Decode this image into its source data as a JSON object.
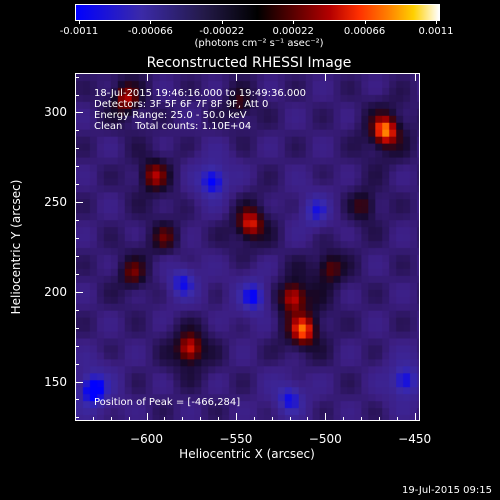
{
  "colorbar": {
    "tick_labels": [
      "-0.0011",
      "-0.00066",
      "-0.00022",
      "0.00022",
      "0.00066",
      "0.0011"
    ],
    "unit_label": "(photons cm⁻² s⁻¹ asec⁻²)",
    "range": [
      -0.0011,
      0.0011
    ]
  },
  "chart_data": {
    "type": "heatmap",
    "title": "Reconstructed RHESSI Image",
    "xlabel": "Heliocentric X (arcsec)",
    "ylabel": "Heliocentric Y (arcsec)",
    "xlim": [
      -640,
      -447
    ],
    "ylim": [
      128,
      322
    ],
    "x_ticks": [
      -600,
      -550,
      -500,
      -450
    ],
    "y_ticks": [
      150,
      200,
      250,
      300
    ],
    "x_tick_labels": [
      "−600",
      "−550",
      "−500",
      "−450"
    ],
    "y_tick_labels": [
      "150",
      "200",
      "250",
      "300"
    ],
    "peak": [
      -466,
      284
    ],
    "bright_sources": [
      {
        "x": -466,
        "y": 290,
        "value": 0.0011
      },
      {
        "x": -512,
        "y": 178,
        "value": 0.00092
      },
      {
        "x": -518,
        "y": 197,
        "value": 0.0008
      },
      {
        "x": -542,
        "y": 238,
        "value": 0.00086
      },
      {
        "x": -576,
        "y": 168,
        "value": 0.00088
      },
      {
        "x": -612,
        "y": 308,
        "value": 0.0007
      },
      {
        "x": -596,
        "y": 265,
        "value": 0.00066
      },
      {
        "x": -608,
        "y": 210,
        "value": 0.0005
      },
      {
        "x": -590,
        "y": 230,
        "value": 0.00044
      },
      {
        "x": -478,
        "y": 248,
        "value": 0.00042
      },
      {
        "x": -548,
        "y": 305,
        "value": 0.0004
      },
      {
        "x": -497,
        "y": 213,
        "value": 0.00055
      }
    ],
    "dark_sources": [
      {
        "x": -630,
        "y": 145,
        "value": -0.0011
      },
      {
        "x": -563,
        "y": 262,
        "value": -0.0009
      },
      {
        "x": -540,
        "y": 197,
        "value": -0.0008
      },
      {
        "x": -580,
        "y": 205,
        "value": -0.0007
      },
      {
        "x": -505,
        "y": 245,
        "value": -0.0006
      },
      {
        "x": -455,
        "y": 150,
        "value": -0.0008
      },
      {
        "x": -520,
        "y": 140,
        "value": -0.0007
      }
    ]
  },
  "info": {
    "line1": "18-Jul-2015 19:46:16.000 to 19:49:36.000",
    "line2": "Detectors: 3F 5F 6F 7F 8F 9F, Att 0",
    "line3": "Energy Range: 25.0 - 50.0 keV",
    "line4": "Clean    Total counts: 1.10E+04",
    "peak_text": "Position of Peak = [-466,284]"
  },
  "timestamp": "19-Jul-2015 09:15"
}
